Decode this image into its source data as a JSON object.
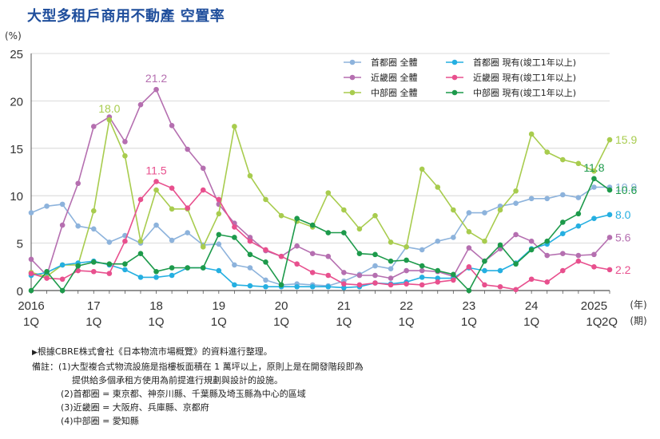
{
  "header": {
    "title": "大型多租戶商用不動產 空置率"
  },
  "chart_data": {
    "type": "line",
    "title": "大型多租戶商用不動產 空置率",
    "ylabel": "(%)",
    "ylim": [
      0,
      25
    ],
    "yticks": [
      "0",
      "5",
      "10",
      "15",
      "20",
      "25"
    ],
    "x_tick_labels": [
      {
        "year": "2016",
        "sub": "1Q",
        "index": 0
      },
      {
        "year": "17",
        "sub": "1Q",
        "index": 4
      },
      {
        "year": "18",
        "sub": "1Q",
        "index": 8
      },
      {
        "year": "19",
        "sub": "1Q",
        "index": 12
      },
      {
        "year": "20",
        "sub": "1Q",
        "index": 16
      },
      {
        "year": "21",
        "sub": "1Q",
        "index": 20
      },
      {
        "year": "22",
        "sub": "1Q",
        "index": 24
      },
      {
        "year": "23",
        "sub": "1Q",
        "index": 28
      },
      {
        "year": "24",
        "sub": "1Q",
        "index": 32
      },
      {
        "year": "2025",
        "sub": "1Q",
        "index": 36
      },
      {
        "year": "",
        "sub": "2Q",
        "index": 37
      }
    ],
    "x_unit_year": "(年)",
    "x_unit_period": "(期)",
    "series": [
      {
        "name": "首都圈 全體",
        "color": "#8db3dc",
        "values": [
          8.2,
          8.9,
          9.1,
          6.8,
          6.5,
          5.1,
          5.8,
          5.0,
          6.9,
          5.3,
          6.1,
          4.8,
          4.9,
          2.7,
          2.4,
          1.1,
          0.6,
          0.7,
          0.6,
          0.5,
          1.0,
          1.7,
          2.6,
          2.3,
          4.6,
          4.3,
          5.2,
          5.6,
          8.2,
          8.2,
          8.9,
          9.2,
          9.7,
          9.7,
          10.1,
          9.8,
          10.9,
          10.9
        ],
        "end_label": "10.9",
        "label_color": "#8db3dc"
      },
      {
        "name": "近畿圈 全體",
        "color": "#b56fb0",
        "values": [
          3.3,
          1.6,
          6.9,
          11.3,
          17.3,
          18.3,
          15.7,
          19.6,
          21.2,
          17.4,
          14.9,
          12.9,
          9.1,
          7.1,
          5.6,
          4.2,
          3.6,
          4.7,
          3.9,
          3.6,
          1.9,
          1.6,
          1.6,
          1.3,
          2.1,
          2.1,
          2.0,
          1.5,
          4.5,
          3.1,
          4.4,
          5.9,
          5.2,
          3.7,
          3.9,
          3.7,
          3.8,
          5.6
        ],
        "end_label": "5.6",
        "label_color": "#b56fb0",
        "peak_index": 8,
        "peak_label": "21.2"
      },
      {
        "name": "中部圈 全體",
        "color": "#a8cc4e",
        "values": [
          1.9,
          1.5,
          2.7,
          2.7,
          8.4,
          18.0,
          14.2,
          5.2,
          10.6,
          8.6,
          8.6,
          4.6,
          8.1,
          17.3,
          12.1,
          9.6,
          7.9,
          7.3,
          6.7,
          10.3,
          8.5,
          6.5,
          7.9,
          5.1,
          4.6,
          12.8,
          10.9,
          8.5,
          6.2,
          5.2,
          8.5,
          10.5,
          16.5,
          14.6,
          13.8,
          13.4,
          12.6,
          15.9
        ],
        "end_label": "15.9",
        "label_color": "#a8cc4e",
        "peak_index": 5,
        "peak_label": "18.0"
      },
      {
        "name": "首都圈 現有(竣工1年以上)",
        "color": "#25afe1",
        "values": [
          1.6,
          1.9,
          2.7,
          2.9,
          3.1,
          2.7,
          2.2,
          1.4,
          1.4,
          1.6,
          2.4,
          2.4,
          2.1,
          0.6,
          0.5,
          0.4,
          0.4,
          0.4,
          0.4,
          0.4,
          0.3,
          0.4,
          0.8,
          0.7,
          0.9,
          1.4,
          1.3,
          1.3,
          2.4,
          2.1,
          2.1,
          2.9,
          4.4,
          4.9,
          6.0,
          6.8,
          7.6,
          8.0
        ],
        "end_label": "8.0",
        "label_color": "#25afe1"
      },
      {
        "name": "近畿圈 現有(竣工1年以上)",
        "color": "#e8508e",
        "values": [
          1.8,
          1.3,
          1.2,
          2.1,
          2.0,
          1.8,
          5.2,
          9.6,
          11.5,
          10.8,
          8.7,
          10.6,
          9.6,
          6.7,
          5.2,
          4.3,
          3.6,
          2.8,
          1.9,
          1.6,
          0.7,
          0.6,
          0.8,
          0.6,
          0.7,
          0.6,
          0.9,
          1.1,
          2.5,
          0.6,
          0.4,
          0.1,
          1.2,
          0.9,
          2.1,
          3.1,
          2.5,
          2.2
        ],
        "end_label": "2.2",
        "label_color": "#e8508e",
        "peak_index": 8,
        "peak_label": "11.5"
      },
      {
        "name": "中部圈 現有(竣工1年以上)",
        "color": "#1d9a4b",
        "values": [
          0.0,
          2.0,
          0.0,
          2.6,
          3.0,
          2.8,
          2.8,
          3.9,
          2.0,
          2.4,
          2.4,
          2.4,
          5.9,
          5.6,
          3.8,
          3.0,
          0.6,
          7.6,
          6.9,
          6.1,
          6.1,
          3.9,
          3.8,
          3.1,
          3.2,
          2.6,
          2.1,
          1.7,
          0.0,
          3.1,
          4.8,
          2.8,
          4.3,
          5.2,
          7.2,
          8.1,
          11.8,
          10.6
        ],
        "end_label": "10.6",
        "label_color": "#1d9a4b",
        "peak_index": 36,
        "peak_label": "11.8"
      }
    ],
    "legend_position": "top-right"
  },
  "notes": {
    "source": "根據CBRE株式會社《日本物流市場概覽》的資料進行整理。",
    "source_marker": "▶",
    "remark_1": "備註：(1)大型複合式物流設施是指樓板面積在 1 萬坪以上，原則上是在開發階段即為",
    "remark_1b": "提供給多個承租方使用為前提進行規劃與設計的設施。",
    "remark_2": "(2)首都圈 = 東京都、神奈川縣、千葉縣及埼玉縣為中心的區域",
    "remark_3": "(3)近畿圈 = 大阪府、兵庫縣、京都府",
    "remark_4": "(4)中部圈 = 愛知縣"
  }
}
